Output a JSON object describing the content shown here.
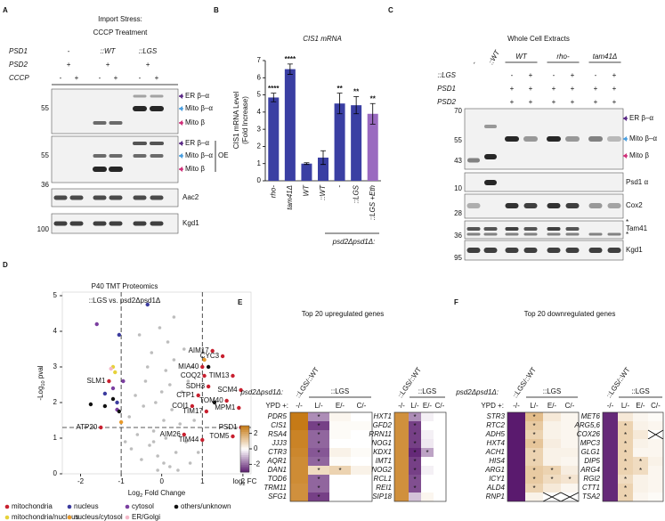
{
  "blots": [
    {
      "panel": "A",
      "title": [
        "Import Stress:",
        "CCCP Treatment"
      ],
      "header": [
        {
          "label": "PSD1",
          "groups": [
            "-",
            "::WT",
            "::LGS"
          ]
        },
        {
          "label": "PSD2",
          "groups": [
            "+",
            "+",
            "+"
          ]
        },
        {
          "label": "CCCP",
          "lanes": [
            "-",
            "+",
            "-",
            "+",
            "-",
            "+"
          ]
        }
      ],
      "band_labels": [
        "ER β–α",
        "Mito β–α",
        "Mito β",
        "ER β–α",
        "Mito β–α",
        "Mito β",
        "Aac2",
        "Kgd1"
      ],
      "oe": "OE",
      "mw": [
        "55",
        "55",
        "36",
        "100"
      ]
    },
    {
      "panel": "C",
      "title": "Whole Cell Extracts",
      "controls": [
        "-",
        "::WT"
      ],
      "groups": [
        "WT",
        "rho-",
        "tam41Δ"
      ],
      "header": [
        {
          "label": "::LGS",
          "lanes": [
            "-",
            "+",
            "-",
            "+",
            "-",
            "+"
          ]
        },
        {
          "label": "PSD1",
          "lanes": [
            "+",
            "+",
            "+",
            "+",
            "+",
            "+"
          ]
        },
        {
          "label": "PSD2",
          "lanes": [
            "+",
            "+",
            "+",
            "+",
            "+",
            "+"
          ]
        }
      ],
      "band_labels": [
        "ER β–α",
        "Mito β–α",
        "Mito β",
        "Psd1 α",
        "Cox2",
        "*",
        "Tam41",
        "*",
        "Kgd1"
      ],
      "mw": [
        "70",
        "55",
        "43",
        "10",
        "28",
        "36",
        "95"
      ]
    }
  ],
  "chart_data": [
    {
      "type": "bar",
      "panel": "B",
      "title": "CIS1 mRNA",
      "ylabel": [
        "CIS1 mRNA Level",
        "(Fold Increase)"
      ],
      "categories": [
        "rho-",
        "tam41Δ",
        "WT",
        "::WT",
        "-",
        "::LGS",
        "::LGS +Eth"
      ],
      "values": [
        4.85,
        6.5,
        1.0,
        1.35,
        4.5,
        4.4,
        3.9
      ],
      "errors": [
        0.25,
        0.3,
        0.05,
        0.4,
        0.6,
        0.5,
        0.6
      ],
      "significance": [
        "****",
        "****",
        null,
        null,
        "**",
        "**",
        "**"
      ],
      "colors": [
        "#3a3fa3",
        "#3a3fa3",
        "#3a3fa3",
        "#3a3fa3",
        "#3a3fa3",
        "#3a3fa3",
        "#9a6ac0"
      ],
      "group_label": "psd2Δpsd1Δ:",
      "ylim": [
        0,
        7
      ],
      "yticks": [
        0,
        1,
        2,
        3,
        4,
        5,
        6,
        7
      ]
    },
    {
      "type": "scatter",
      "panel": "D",
      "title": "P40 TMT Proteomics",
      "subtitle": "::LGS vs. psd2Δpsd1Δ",
      "xlabel": {
        "pre": "Log",
        "sub": "2",
        "post": " Fold Change"
      },
      "ylabel": {
        "pre": "-Log",
        "sub": "10",
        "post": " pval"
      },
      "xlim": [
        -2.45,
        2.2
      ],
      "ylim": [
        0,
        5.1
      ],
      "xticks": [
        -2,
        -1,
        0,
        1,
        2
      ],
      "yticks": [
        0,
        1,
        2,
        3,
        4,
        5
      ],
      "thresholds": {
        "x": [
          -1,
          1
        ],
        "y": 1.3
      },
      "background_points": {
        "color": "#bdbdbd",
        "x": [
          0.05,
          -0.1,
          0.2,
          -0.3,
          0.35,
          0.1,
          -0.2,
          0.45,
          -0.5,
          0.6,
          -0.6,
          0.25,
          -0.15,
          0.5,
          -0.4,
          0.1,
          0.3,
          -0.25,
          0.15,
          -0.05,
          0.7,
          -0.75,
          0.8,
          -0.8,
          0.05,
          0.4,
          -0.45,
          0.65,
          -0.65,
          0.2,
          -0.35,
          0.55,
          -0.1,
          0.9,
          -0.9,
          0.3,
          -0.55,
          0.75,
          0.0,
          -0.2
        ],
        "y": [
          0.3,
          0.5,
          0.2,
          0.8,
          0.6,
          1.0,
          1.2,
          1.4,
          0.4,
          0.9,
          1.1,
          1.8,
          2.0,
          2.3,
          2.6,
          2.9,
          3.2,
          3.4,
          3.7,
          4.1,
          0.3,
          0.7,
          1.5,
          1.6,
          1.5,
          0.1,
          1.9,
          2.6,
          2.2,
          2.5,
          3.0,
          3.5,
          0.1,
          0.6,
          0.9,
          4.4,
          3.9,
          3.0,
          2.3,
          0.9
        ]
      },
      "series": [
        {
          "name": "mitochondria",
          "color": "#c8202f",
          "x": [
            1.25,
            1.5,
            1.0,
            1.05,
            1.75,
            1.15,
            1.95,
            0.9,
            1.6,
            0.75,
            1.1,
            1.9,
            1.95,
            0.55,
            1.0,
            1.75,
            -1.3,
            -1.5
          ],
          "y": [
            3.45,
            3.3,
            3.0,
            2.75,
            2.75,
            2.45,
            2.35,
            2.2,
            2.05,
            1.9,
            1.75,
            1.85,
            1.3,
            1.1,
            0.95,
            1.05,
            2.6,
            1.3
          ],
          "labels": [
            "AIM17",
            "CYC3",
            "MIA40",
            "COQ2",
            "TIM13",
            "SDH3",
            "SCM4",
            "CTP1",
            "TOM40",
            "COI1",
            "TIM17",
            "MPM1",
            "PSD1",
            "AIM26",
            "TIM44",
            "TOM5",
            "SLM1",
            "ATP20"
          ]
        },
        {
          "name": "nucleus",
          "color": "#3b3b9e",
          "x": [
            -1.05,
            -1.4,
            -1.1,
            -0.35
          ],
          "y": [
            3.9,
            2.25,
            2.0,
            4.75
          ]
        },
        {
          "name": "cytosol",
          "color": "#7b3fa0",
          "x": [
            -1.6,
            -1.2,
            -0.95,
            -1.1
          ],
          "y": [
            4.2,
            2.4,
            2.6,
            1.8
          ]
        },
        {
          "name": "others/unknown",
          "color": "#111111",
          "x": [
            -1.75,
            -1.4,
            -1.05,
            1.3,
            1.15,
            -1.2
          ],
          "y": [
            1.95,
            1.9,
            1.75,
            2.0,
            3.0,
            2.1
          ]
        },
        {
          "name": "mitochondria/nucleus",
          "color": "#e6d23a",
          "x": [
            -1.2,
            -1.15
          ],
          "y": [
            3.0,
            2.85
          ]
        },
        {
          "name": "nucleus/cytosol",
          "color": "#e89a2c",
          "x": [
            -1.0,
            1.05
          ],
          "y": [
            1.45,
            3.2
          ]
        },
        {
          "name": "ER/Golgi",
          "color": "#f4b8c8",
          "x": [
            -1.25
          ],
          "y": [
            2.95
          ]
        }
      ]
    },
    {
      "type": "heatmap",
      "panel": "E",
      "title": "Top 20 upregulated genes",
      "row_label": "psd2Δpsd1Δ:",
      "condition_label": "YPD +:",
      "clim": [
        -3,
        3
      ],
      "colorbar": {
        "ticks": [
          2,
          0,
          -2
        ],
        "label": {
          "pre": "log",
          "sub": "2",
          "post": " FC"
        }
      },
      "blocks": [
        {
          "ratio_label": "::LGS/::WT",
          "group_label": "::LGS",
          "columns": [
            "-/-",
            "L/-",
            "E/-",
            "C/-"
          ],
          "genes": [
            "PDR5",
            "CIS1",
            "RSA4",
            "JJJ3",
            "CTR3",
            "AQR1",
            "DAN1",
            "TOD6",
            "TRM11",
            "SFG1"
          ],
          "values": [
            [
              3,
              -1.5,
              0.2,
              0
            ],
            [
              3,
              -2.5,
              0.1,
              0.1
            ],
            [
              2.8,
              -2,
              0.1,
              0
            ],
            [
              2.8,
              -2,
              0,
              0
            ],
            [
              2.7,
              -2.2,
              0.3,
              0.1
            ],
            [
              2.6,
              -2,
              0.1,
              0
            ],
            [
              2.6,
              0.8,
              1,
              0.3
            ],
            [
              2.6,
              -2,
              0,
              0
            ],
            [
              2.5,
              -2,
              0,
              0
            ],
            [
              2.5,
              -2.5,
              0,
              0
            ]
          ],
          "stars": [
            [
              null,
              "*",
              null,
              null
            ],
            [
              null,
              "*",
              null,
              null
            ],
            [
              null,
              "*",
              null,
              null
            ],
            [
              null,
              "*",
              null,
              null
            ],
            [
              null,
              "*",
              null,
              null
            ],
            [
              null,
              "*",
              null,
              null
            ],
            [
              null,
              "*",
              "*",
              null
            ],
            [
              null,
              "*",
              null,
              null
            ],
            [
              null,
              "*",
              null,
              null
            ],
            [
              null,
              "*",
              null,
              null
            ]
          ]
        },
        {
          "ratio_label": "::LGS/::WT",
          "group_label": "::LGS",
          "columns": [
            "-/-",
            "L/-",
            "E/-",
            "C/-"
          ],
          "genes": [
            "HXT1",
            "GFD2",
            "RRN11",
            "NOG1",
            "KDX1",
            "IMT1",
            "NOG2",
            "RCL1",
            "REI1",
            "SIP18"
          ],
          "values": [
            [
              2.5,
              -1.5,
              -0.2,
              0
            ],
            [
              2.5,
              -2.5,
              0,
              0
            ],
            [
              2.5,
              -2.5,
              -0.2,
              0
            ],
            [
              2.5,
              -2.5,
              -0.3,
              0
            ],
            [
              2.5,
              -2.8,
              -1.2,
              0
            ],
            [
              2.5,
              -2.5,
              0,
              0
            ],
            [
              2.5,
              -2.5,
              -0.2,
              0
            ],
            [
              2.5,
              -2.3,
              0,
              0
            ],
            [
              2.5,
              -2.3,
              0,
              0
            ],
            [
              2.5,
              -0.8,
              0.2,
              0
            ]
          ],
          "stars": [
            [
              null,
              "*",
              null,
              null
            ],
            [
              null,
              "*",
              null,
              null
            ],
            [
              null,
              "*",
              null,
              null
            ],
            [
              null,
              "*",
              null,
              null
            ],
            [
              null,
              "*",
              "*",
              null
            ],
            [
              null,
              "*",
              null,
              null
            ],
            [
              null,
              "*",
              null,
              null
            ],
            [
              null,
              "*",
              null,
              null
            ],
            [
              null,
              "*",
              null,
              null
            ],
            [
              null,
              null,
              null,
              null
            ]
          ]
        }
      ]
    },
    {
      "type": "heatmap",
      "panel": "F",
      "title": "Top 20 downregulated genes",
      "row_label": "psd2Δpsd1Δ:",
      "condition_label": "YPD +:",
      "clim": [
        -3,
        3
      ],
      "blocks": [
        {
          "ratio_label": "::LGS/::WT",
          "group_label": "::LGS",
          "columns": [
            "-/-",
            "L/-",
            "E/-",
            "C/-"
          ],
          "genes": [
            "STR3",
            "RTC2",
            "ADH5",
            "HXT4",
            "ACH1",
            "HIS4",
            "ARG1",
            "ICY1",
            "ALD4",
            "RNP1"
          ],
          "values": [
            [
              -3,
              1.5,
              0.5,
              0.2
            ],
            [
              -3,
              1.2,
              0.3,
              0.2
            ],
            [
              -3,
              1,
              0.3,
              0.2
            ],
            [
              -3,
              1.3,
              0.4,
              0.2
            ],
            [
              -3,
              1,
              0.3,
              0.3
            ],
            [
              -3,
              1,
              0.3,
              0.2
            ],
            [
              -3,
              1.2,
              1,
              0.4
            ],
            [
              -3,
              1.2,
              0.8,
              0.6
            ],
            [
              -3,
              1,
              0.5,
              0.2
            ],
            [
              -3,
              0.3,
              null,
              null
            ]
          ],
          "stars": [
            [
              null,
              "*",
              null,
              null
            ],
            [
              null,
              "*",
              null,
              null
            ],
            [
              null,
              "*",
              null,
              null
            ],
            [
              null,
              "*",
              null,
              null
            ],
            [
              null,
              "*",
              null,
              null
            ],
            [
              null,
              "*",
              null,
              null
            ],
            [
              null,
              "*",
              "*",
              null
            ],
            [
              null,
              "*",
              "*",
              "*"
            ],
            [
              null,
              "*",
              null,
              null
            ],
            [
              null,
              null,
              null,
              null
            ]
          ]
        },
        {
          "ratio_label": "::LGS/::WT",
          "group_label": "::LGS",
          "columns": [
            "-/-",
            "L/-",
            "E/-",
            "C/-"
          ],
          "genes": [
            "MET6",
            "ARG5,6",
            "COX26",
            "MPC3",
            "GLG1",
            "DIP5",
            "ARG4",
            "RGI2",
            "CTT1",
            "TSA2"
          ],
          "values": [
            [
              -2.8,
              0.5,
              0.2,
              0.1
            ],
            [
              -2.8,
              1,
              0.3,
              0.2
            ],
            [
              -2.8,
              1,
              0.5,
              null
            ],
            [
              -2.8,
              1,
              0.3,
              0.2
            ],
            [
              -2.8,
              1,
              0.2,
              0.2
            ],
            [
              -2.8,
              1,
              0.8,
              0.3
            ],
            [
              -2.8,
              1,
              0.8,
              0.2
            ],
            [
              -2.8,
              0.8,
              0.3,
              0.2
            ],
            [
              -2.8,
              1,
              0.3,
              0.2
            ],
            [
              -2.8,
              1,
              0.2,
              0.1
            ]
          ],
          "stars": [
            [
              null,
              null,
              null,
              null
            ],
            [
              null,
              "*",
              null,
              null
            ],
            [
              null,
              "*",
              null,
              null
            ],
            [
              null,
              "*",
              null,
              null
            ],
            [
              null,
              "*",
              null,
              null
            ],
            [
              null,
              "*",
              "*",
              null
            ],
            [
              null,
              "*",
              "*",
              null
            ],
            [
              null,
              "*",
              null,
              null
            ],
            [
              null,
              "*",
              null,
              null
            ],
            [
              null,
              "*",
              null,
              null
            ]
          ]
        }
      ]
    }
  ]
}
